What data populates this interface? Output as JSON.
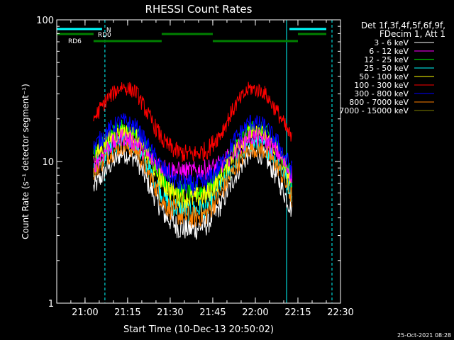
{
  "chart_data": {
    "type": "line",
    "title": "RHESSI Count Rates",
    "xlabel": "Start Time (10-Dec-13 20:50:02)",
    "ylabel": "Count Rate (s⁻¹ detector segment⁻¹)",
    "y_scale": "log",
    "ylim": [
      1,
      100
    ],
    "xlim": [
      "20:50:02",
      "22:30"
    ],
    "x_ticks": [
      "21:00",
      "21:15",
      "21:30",
      "21:45",
      "22:00",
      "22:15",
      "22:30"
    ],
    "y_ticks": [
      "1",
      "10",
      "100"
    ],
    "grid": false,
    "legend_header": [
      "Det 1f,3f,4f,5f,6f,9f,",
      "FDecim 1, Att 1"
    ],
    "legend_placement": "right",
    "series": [
      {
        "name": "3 - 6 keV",
        "color": "#ffffff",
        "x": [
          "21:03",
          "21:08",
          "21:13",
          "21:18",
          "21:23",
          "21:28",
          "21:33",
          "21:38",
          "21:43",
          "21:48",
          "21:53",
          "21:58",
          "22:03",
          "22:08",
          "22:13"
        ],
        "values": [
          6.5,
          9.0,
          11.5,
          10.5,
          6.5,
          4.2,
          3.4,
          3.3,
          3.6,
          5.0,
          8.0,
          11.5,
          11.0,
          7.5,
          4.5
        ]
      },
      {
        "name": "6 - 12 keV",
        "color": "#ff00ff",
        "x": [
          "21:03",
          "21:08",
          "21:13",
          "21:18",
          "21:23",
          "21:28",
          "21:33",
          "21:38",
          "21:43",
          "21:48",
          "21:53",
          "21:58",
          "22:03",
          "22:08",
          "22:13"
        ],
        "values": [
          9.5,
          12.5,
          15.0,
          13.5,
          10.5,
          9.0,
          8.5,
          8.5,
          8.8,
          9.5,
          12.0,
          15.0,
          14.5,
          11.5,
          8.0
        ]
      },
      {
        "name": "12 - 25 keV",
        "color": "#00ff00",
        "x": [
          "21:03",
          "21:08",
          "21:13",
          "21:18",
          "21:23",
          "21:28",
          "21:33",
          "21:38",
          "21:43",
          "21:48",
          "21:53",
          "21:58",
          "22:03",
          "22:08",
          "22:13"
        ],
        "values": [
          11.0,
          15.0,
          17.5,
          16.0,
          11.0,
          7.5,
          6.2,
          6.0,
          6.4,
          8.5,
          13.0,
          17.0,
          16.5,
          12.5,
          7.5
        ]
      },
      {
        "name": "25 - 50 keV",
        "color": "#00ffff",
        "x": [
          "21:03",
          "21:08",
          "21:13",
          "21:18",
          "21:23",
          "21:28",
          "21:33",
          "21:38",
          "21:43",
          "21:48",
          "21:53",
          "21:58",
          "22:03",
          "22:08",
          "22:13"
        ],
        "values": [
          9.0,
          12.0,
          14.0,
          13.0,
          8.5,
          5.5,
          4.6,
          4.5,
          4.8,
          6.5,
          10.0,
          13.5,
          13.0,
          10.0,
          6.0
        ]
      },
      {
        "name": "50 - 100 keV",
        "color": "#ffff00",
        "x": [
          "21:03",
          "21:08",
          "21:13",
          "21:18",
          "21:23",
          "21:28",
          "21:33",
          "21:38",
          "21:43",
          "21:48",
          "21:53",
          "21:58",
          "22:03",
          "22:08",
          "22:13"
        ],
        "values": [
          10.5,
          14.0,
          16.5,
          15.0,
          10.0,
          6.8,
          5.6,
          5.5,
          5.8,
          7.8,
          12.0,
          16.0,
          15.5,
          11.5,
          7.0
        ]
      },
      {
        "name": "100 - 300 keV",
        "color": "#ff0000",
        "x": [
          "21:03",
          "21:08",
          "21:13",
          "21:18",
          "21:23",
          "21:28",
          "21:33",
          "21:38",
          "21:43",
          "21:48",
          "21:53",
          "21:58",
          "22:03",
          "22:08",
          "22:13"
        ],
        "values": [
          20.0,
          28.0,
          34.0,
          31.0,
          20.0,
          13.5,
          11.5,
          11.2,
          12.0,
          16.0,
          25.0,
          33.0,
          31.0,
          22.0,
          14.0
        ]
      },
      {
        "name": "300 - 800 keV",
        "color": "#0000ff",
        "x": [
          "21:03",
          "21:08",
          "21:13",
          "21:18",
          "21:23",
          "21:28",
          "21:33",
          "21:38",
          "21:43",
          "21:48",
          "21:53",
          "21:58",
          "22:03",
          "22:08",
          "22:13"
        ],
        "values": [
          12.5,
          16.5,
          19.5,
          17.5,
          12.0,
          8.5,
          7.0,
          6.8,
          7.2,
          9.5,
          14.5,
          19.0,
          18.0,
          13.5,
          8.5
        ]
      },
      {
        "name": "800 - 7000 keV",
        "color": "#ff8000",
        "x": [
          "21:03",
          "21:08",
          "21:13",
          "21:18",
          "21:23",
          "21:28",
          "21:33",
          "21:38",
          "21:43",
          "21:48",
          "21:53",
          "21:58",
          "22:03",
          "22:08",
          "22:13"
        ],
        "values": [
          8.5,
          11.0,
          13.0,
          12.0,
          7.8,
          5.0,
          4.2,
          4.0,
          4.3,
          6.0,
          9.2,
          12.5,
          12.0,
          9.2,
          5.5
        ]
      },
      {
        "name": "7000 - 15000 keV",
        "color": "#808000",
        "x": [],
        "values": []
      }
    ],
    "attenuator_bars": [
      {
        "label": "N",
        "color": "#00ffff",
        "segments": [
          [
            "20:50:02",
            "21:06"
          ],
          [
            "22:12",
            "22:25"
          ]
        ]
      },
      {
        "label": "RD0",
        "color": "#008000",
        "segments": [
          [
            "20:50:02",
            "21:03"
          ],
          [
            "21:27",
            "21:45"
          ],
          [
            "22:15",
            "22:25"
          ]
        ]
      },
      {
        "label": "RD6",
        "color": "#008000",
        "segments": [
          [
            "21:03",
            "21:27"
          ],
          [
            "21:45",
            "22:15"
          ]
        ]
      }
    ],
    "vertical_markers": [
      {
        "time": "20:50:02",
        "style": "solid",
        "color": "#00ffff"
      },
      {
        "time": "21:07",
        "style": "dashed",
        "color": "#00ffff"
      },
      {
        "time": "22:11",
        "style": "solid",
        "color": "#00ffff"
      },
      {
        "time": "22:27",
        "style": "dashed",
        "color": "#00ffff"
      }
    ]
  },
  "footer": {
    "timestamp": "25-Oct-2021 08:28"
  }
}
